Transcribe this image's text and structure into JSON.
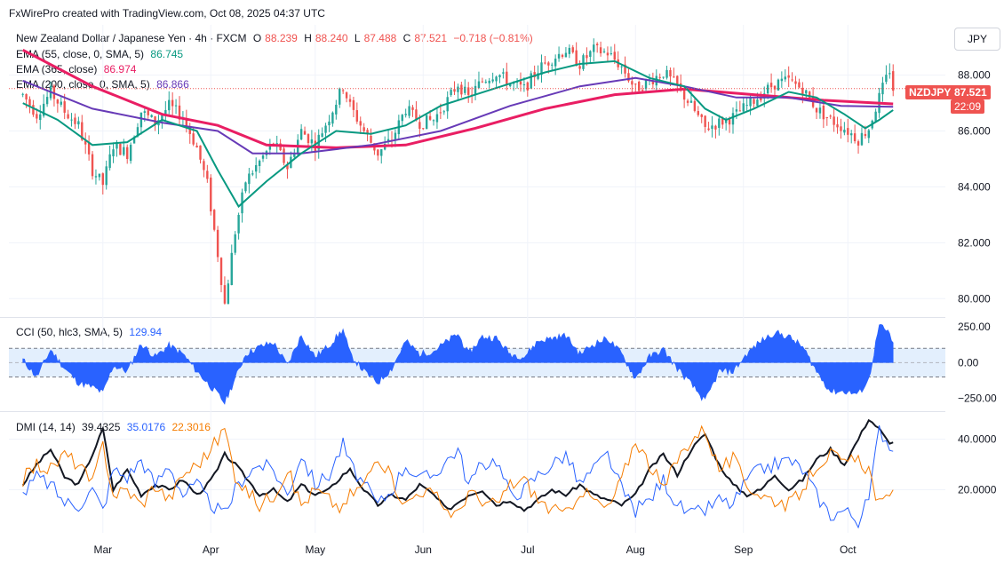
{
  "header": {
    "credit": "FxWirePro created with TradingView.com, Oct 08, 2025 04:37 UTC"
  },
  "currency_button": "JPY",
  "legend": {
    "title": "New Zealand Dollar / Japanese Yen · 4h · FXCM",
    "o_label": "O",
    "o_val": "88.239",
    "h_label": "H",
    "h_val": "88.240",
    "l_label": "L",
    "l_val": "87.488",
    "c_label": "C",
    "c_val": "87.521",
    "change": "−0.718 (−0.81%)",
    "ema55": "EMA (55, close, 0, SMA, 5)",
    "ema55_val": "86.745",
    "ema365": "EMA (365, close)",
    "ema365_val": "86.974",
    "ema200": "EMA (200, close, 0, SMA, 5)",
    "ema200_val": "86.866",
    "cci": "CCI (50, hlc3, SMA, 5)",
    "cci_val": "129.94",
    "dmi": "DMI (14, 14)",
    "dmi_adx": "39.4325",
    "dmi_plus": "35.0176",
    "dmi_minus": "22.3016"
  },
  "price_tags": {
    "symbol": "NZDJPY",
    "price": "87.521",
    "timer": "22:09"
  },
  "colors": {
    "up": "#26a69a",
    "down": "#ef5350",
    "ema55": "#089981",
    "ema200": "#673ab7",
    "ema365": "#e91e63",
    "cci": "#2962ff",
    "adx": "#131722",
    "plus_di": "#2962ff",
    "minus_di": "#f57c00"
  },
  "chart_data": [
    {
      "type": "candlestick",
      "title": "New Zealand Dollar / Japanese Yen · 4h · FXCM",
      "y_ticks": [
        "88.000",
        "86.000",
        "84.000",
        "82.000",
        "80.000"
      ],
      "ylim": [
        79.5,
        89.8
      ],
      "x_ticks": [
        "Mar",
        "Apr",
        "May",
        "Jun",
        "Jul",
        "Aug",
        "Sep",
        "Oct"
      ],
      "x_tick_days": [
        23,
        54,
        84,
        115,
        145,
        176,
        207,
        237
      ],
      "xlim": [
        -4,
        265
      ],
      "price_path": [
        [
          0,
          87.3
        ],
        [
          4,
          86.6
        ],
        [
          8,
          87.4
        ],
        [
          12,
          86.7
        ],
        [
          16,
          86.2
        ],
        [
          20,
          84.6
        ],
        [
          23,
          84.1
        ],
        [
          26,
          85.5
        ],
        [
          30,
          85.2
        ],
        [
          34,
          86.7
        ],
        [
          38,
          86.3
        ],
        [
          42,
          86.9
        ],
        [
          46,
          86.5
        ],
        [
          50,
          85.4
        ],
        [
          53,
          84.1
        ],
        [
          56,
          81.6
        ],
        [
          58,
          79.8
        ],
        [
          61,
          82.4
        ],
        [
          64,
          84.2
        ],
        [
          68,
          84.9
        ],
        [
          72,
          85.6
        ],
        [
          76,
          84.7
        ],
        [
          80,
          86.0
        ],
        [
          84,
          85.5
        ],
        [
          88,
          86.5
        ],
        [
          92,
          87.6
        ],
        [
          94,
          86.9
        ],
        [
          98,
          86.0
        ],
        [
          102,
          85.2
        ],
        [
          106,
          85.7
        ],
        [
          110,
          86.8
        ],
        [
          114,
          86.3
        ],
        [
          118,
          86.4
        ],
        [
          122,
          87.1
        ],
        [
          125,
          87.7
        ],
        [
          128,
          87.2
        ],
        [
          132,
          87.8
        ],
        [
          136,
          88.1
        ],
        [
          140,
          87.7
        ],
        [
          144,
          87.5
        ],
        [
          148,
          88.2
        ],
        [
          152,
          88.6
        ],
        [
          156,
          88.9
        ],
        [
          160,
          88.4
        ],
        [
          164,
          88.9
        ],
        [
          168,
          88.8
        ],
        [
          172,
          88.3
        ],
        [
          176,
          87.5
        ],
        [
          180,
          87.8
        ],
        [
          184,
          88.1
        ],
        [
          188,
          87.6
        ],
        [
          192,
          86.9
        ],
        [
          196,
          86.1
        ],
        [
          200,
          86.3
        ],
        [
          204,
          86.5
        ],
        [
          208,
          86.9
        ],
        [
          212,
          87.3
        ],
        [
          216,
          87.7
        ],
        [
          220,
          87.8
        ],
        [
          224,
          87.5
        ],
        [
          228,
          86.8
        ],
        [
          232,
          86.4
        ],
        [
          236,
          86.1
        ],
        [
          240,
          85.7
        ],
        [
          243,
          86.1
        ],
        [
          246,
          87.2
        ],
        [
          249,
          88.2
        ],
        [
          250,
          87.52
        ]
      ],
      "ema55": [
        [
          0,
          87.0
        ],
        [
          10,
          86.4
        ],
        [
          20,
          85.5
        ],
        [
          30,
          85.6
        ],
        [
          40,
          86.4
        ],
        [
          50,
          86.0
        ],
        [
          56,
          84.6
        ],
        [
          62,
          83.3
        ],
        [
          70,
          84.2
        ],
        [
          80,
          85.2
        ],
        [
          90,
          86.0
        ],
        [
          100,
          85.9
        ],
        [
          110,
          86.2
        ],
        [
          120,
          86.9
        ],
        [
          130,
          87.3
        ],
        [
          140,
          87.7
        ],
        [
          150,
          88.1
        ],
        [
          160,
          88.4
        ],
        [
          170,
          88.5
        ],
        [
          180,
          87.9
        ],
        [
          190,
          87.6
        ],
        [
          196,
          86.8
        ],
        [
          202,
          86.4
        ],
        [
          210,
          86.8
        ],
        [
          220,
          87.4
        ],
        [
          228,
          87.2
        ],
        [
          236,
          86.6
        ],
        [
          242,
          86.1
        ],
        [
          246,
          86.4
        ],
        [
          250,
          86.75
        ]
      ],
      "ema200": [
        [
          0,
          87.8
        ],
        [
          20,
          86.8
        ],
        [
          40,
          86.3
        ],
        [
          56,
          86.0
        ],
        [
          66,
          85.2
        ],
        [
          80,
          85.2
        ],
        [
          100,
          85.5
        ],
        [
          120,
          86.0
        ],
        [
          140,
          86.9
        ],
        [
          160,
          87.6
        ],
        [
          176,
          87.9
        ],
        [
          190,
          87.6
        ],
        [
          205,
          87.2
        ],
        [
          220,
          87.2
        ],
        [
          235,
          86.9
        ],
        [
          250,
          86.87
        ]
      ],
      "ema365": [
        [
          0,
          88.9
        ],
        [
          20,
          87.6
        ],
        [
          40,
          86.6
        ],
        [
          56,
          86.2
        ],
        [
          70,
          85.5
        ],
        [
          90,
          85.4
        ],
        [
          110,
          85.5
        ],
        [
          130,
          86.1
        ],
        [
          150,
          86.8
        ],
        [
          170,
          87.3
        ],
        [
          190,
          87.5
        ],
        [
          210,
          87.3
        ],
        [
          230,
          87.1
        ],
        [
          250,
          86.97
        ]
      ]
    },
    {
      "type": "area",
      "title": "CCI (50, hlc3, SMA, 5)",
      "y_ticks": [
        "250.00",
        "0.00",
        "−250.00"
      ],
      "bands": [
        100,
        -100
      ],
      "ylim": [
        -320,
        300
      ],
      "x": [
        0,
        4,
        8,
        12,
        16,
        20,
        23,
        26,
        30,
        34,
        38,
        42,
        46,
        50,
        53,
        56,
        58,
        61,
        64,
        68,
        72,
        76,
        80,
        84,
        88,
        92,
        94,
        98,
        102,
        106,
        110,
        114,
        118,
        122,
        125,
        128,
        132,
        136,
        140,
        144,
        148,
        152,
        156,
        160,
        164,
        168,
        172,
        176,
        180,
        184,
        188,
        192,
        196,
        200,
        204,
        208,
        212,
        216,
        220,
        224,
        228,
        232,
        236,
        240,
        243,
        246,
        249,
        250
      ],
      "values": [
        20,
        -100,
        90,
        -40,
        -140,
        -170,
        -210,
        -20,
        -60,
        130,
        40,
        120,
        60,
        -60,
        -140,
        -220,
        -280,
        -110,
        60,
        110,
        140,
        -20,
        190,
        40,
        120,
        230,
        60,
        -60,
        -140,
        -40,
        150,
        60,
        80,
        150,
        200,
        60,
        180,
        170,
        60,
        40,
        150,
        170,
        190,
        60,
        130,
        170,
        60,
        -110,
        40,
        90,
        -40,
        -150,
        -270,
        -60,
        -60,
        60,
        150,
        210,
        180,
        110,
        -60,
        -200,
        -200,
        -220,
        -120,
        260,
        200,
        130
      ]
    },
    {
      "type": "line",
      "title": "DMI (14, 14)",
      "y_ticks": [
        "40.0000",
        "20.0000"
      ],
      "ylim": [
        3,
        50
      ],
      "x": [
        0,
        4,
        8,
        12,
        16,
        20,
        23,
        26,
        30,
        34,
        38,
        42,
        46,
        50,
        53,
        56,
        58,
        61,
        64,
        68,
        72,
        76,
        80,
        84,
        88,
        92,
        94,
        98,
        102,
        106,
        110,
        114,
        118,
        122,
        125,
        128,
        132,
        136,
        140,
        144,
        148,
        152,
        156,
        160,
        164,
        168,
        172,
        176,
        180,
        184,
        188,
        192,
        196,
        200,
        204,
        208,
        212,
        216,
        220,
        224,
        228,
        232,
        236,
        240,
        243,
        246,
        249,
        250
      ],
      "series": [
        {
          "name": "39.4325",
          "key": "adx",
          "values": [
            22,
            30,
            36,
            25,
            22,
            34,
            44,
            20,
            28,
            18,
            22,
            20,
            24,
            18,
            22,
            28,
            34,
            30,
            25,
            18,
            20,
            15,
            22,
            18,
            20,
            26,
            28,
            20,
            14,
            18,
            16,
            22,
            18,
            12,
            15,
            18,
            20,
            14,
            16,
            12,
            16,
            20,
            18,
            22,
            18,
            16,
            14,
            18,
            28,
            34,
            26,
            36,
            42,
            30,
            22,
            18,
            20,
            26,
            20,
            24,
            32,
            36,
            30,
            40,
            48,
            44,
            38,
            39.4
          ]
        },
        {
          "name": "35.0176",
          "key": "plus_di",
          "values": [
            18,
            25,
            22,
            15,
            14,
            20,
            12,
            28,
            25,
            32,
            22,
            30,
            18,
            22,
            16,
            12,
            10,
            20,
            26,
            30,
            28,
            18,
            34,
            22,
            26,
            38,
            30,
            22,
            14,
            20,
            30,
            24,
            26,
            32,
            36,
            22,
            30,
            32,
            18,
            20,
            26,
            30,
            34,
            22,
            28,
            34,
            20,
            12,
            16,
            24,
            14,
            10,
            12,
            16,
            14,
            24,
            28,
            30,
            32,
            28,
            18,
            10,
            12,
            8,
            16,
            44,
            38,
            35
          ]
        },
        {
          "name": "22.3016",
          "key": "minus_di",
          "values": [
            24,
            30,
            28,
            34,
            30,
            22,
            38,
            18,
            20,
            14,
            22,
            16,
            26,
            30,
            34,
            40,
            44,
            26,
            20,
            14,
            18,
            28,
            14,
            20,
            16,
            12,
            18,
            22,
            34,
            24,
            14,
            20,
            18,
            12,
            10,
            20,
            14,
            14,
            22,
            24,
            16,
            12,
            10,
            20,
            16,
            12,
            24,
            40,
            30,
            20,
            32,
            40,
            44,
            28,
            32,
            22,
            18,
            16,
            14,
            20,
            30,
            34,
            30,
            32,
            28,
            14,
            16,
            22.3
          ]
        }
      ]
    }
  ]
}
